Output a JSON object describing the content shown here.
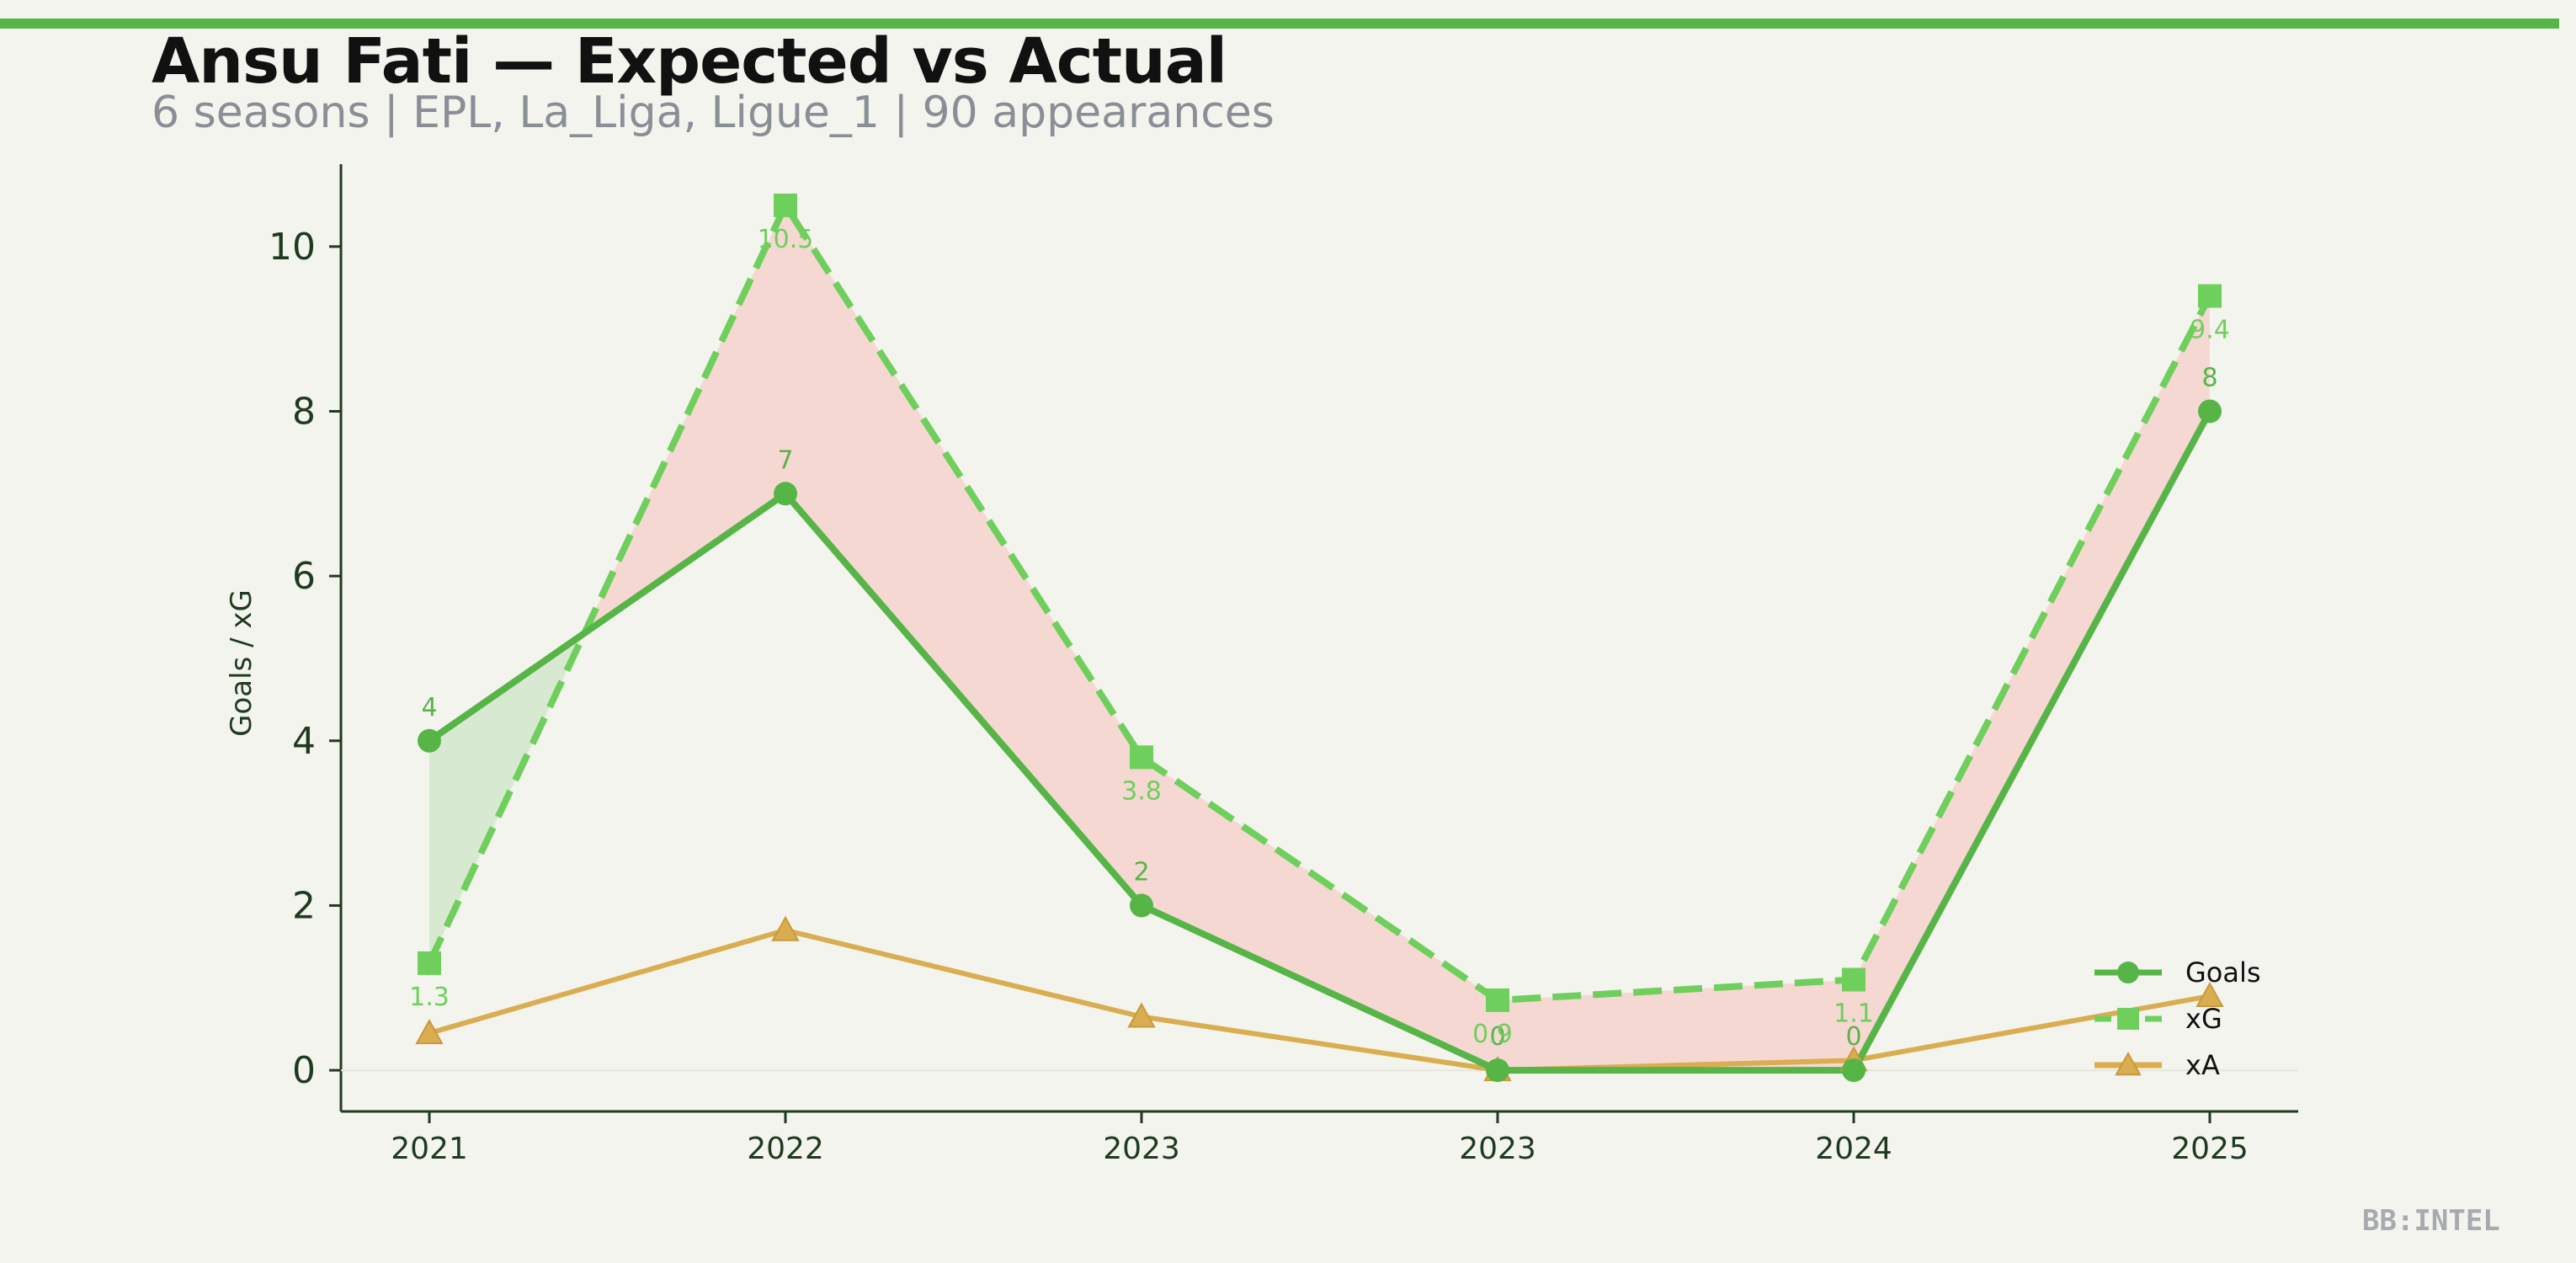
{
  "title": "Ansu Fati — Expected vs Actual",
  "subtitle": "6 seasons | EPL, La_Liga, Ligue_1 | 90 appearances",
  "watermark": "BB:INTEL",
  "colors": {
    "background": "#f4f4ef",
    "accent_bar": "#57b548",
    "goals": "#57b548",
    "xg": "#6fcf5c",
    "xa": "#d9ad50",
    "overperform_fill": "#cfe6c8",
    "underperform_fill": "#f6d2cc"
  },
  "chart_data": {
    "type": "line",
    "categories": [
      "2021",
      "2022",
      "2023",
      "2023",
      "2024",
      "2025"
    ],
    "ylabel": "Goals / xG",
    "ylim": [
      -0.5,
      11
    ],
    "yticks": [
      0,
      2,
      4,
      6,
      8,
      10
    ],
    "legend_position": "lower-right",
    "series": [
      {
        "name": "Goals",
        "values": [
          4,
          7,
          2,
          0,
          0,
          8
        ],
        "labels": [
          "4",
          "7",
          "2",
          "0",
          "0",
          "8"
        ],
        "marker": "circle",
        "style": "solid"
      },
      {
        "name": "xG",
        "values": [
          1.3,
          10.5,
          3.8,
          0.85,
          1.1,
          9.4
        ],
        "labels": [
          "1.3",
          "10.5",
          "3.8",
          "0.9",
          "1.1",
          "9.4"
        ],
        "marker": "square",
        "style": "dashed"
      },
      {
        "name": "xA",
        "values": [
          0.45,
          1.7,
          0.65,
          0.0,
          0.12,
          0.9
        ],
        "marker": "triangle",
        "style": "solid"
      }
    ]
  }
}
